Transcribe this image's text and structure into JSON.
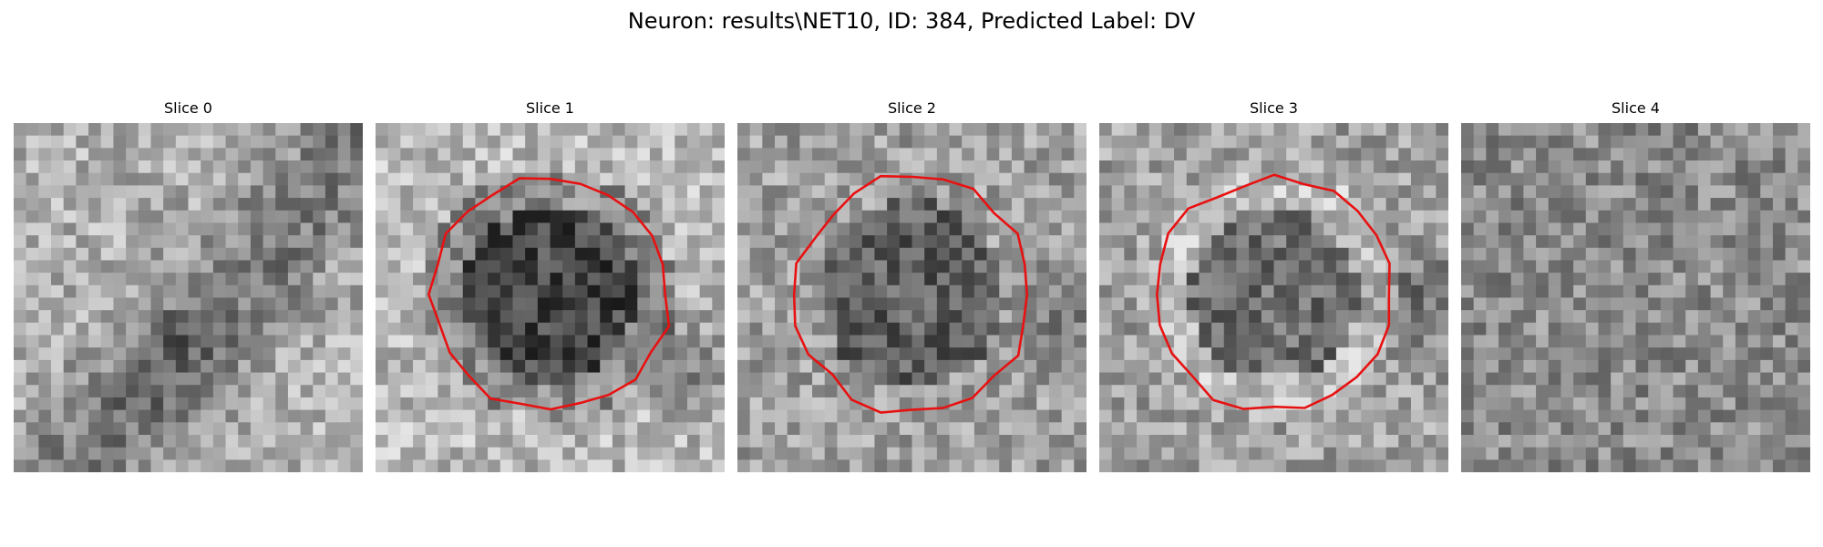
{
  "title": "Neuron: results\\NET10, ID: 384, Predicted Label: DV",
  "contour_color": "#e81111",
  "colormap": "gray",
  "panels": [
    {
      "title": "Slice 0",
      "seed": 11,
      "contour": false,
      "profile": "diag-shadow"
    },
    {
      "title": "Slice 1",
      "seed": 23,
      "contour": true,
      "profile": "cell-dark-center"
    },
    {
      "title": "Slice 2",
      "seed": 37,
      "contour": true,
      "profile": "cell-mottled"
    },
    {
      "title": "Slice 3",
      "seed": 41,
      "contour": true,
      "profile": "cell-bright-ring"
    },
    {
      "title": "Slice 4",
      "seed": 59,
      "contour": false,
      "profile": "noise"
    }
  ]
}
